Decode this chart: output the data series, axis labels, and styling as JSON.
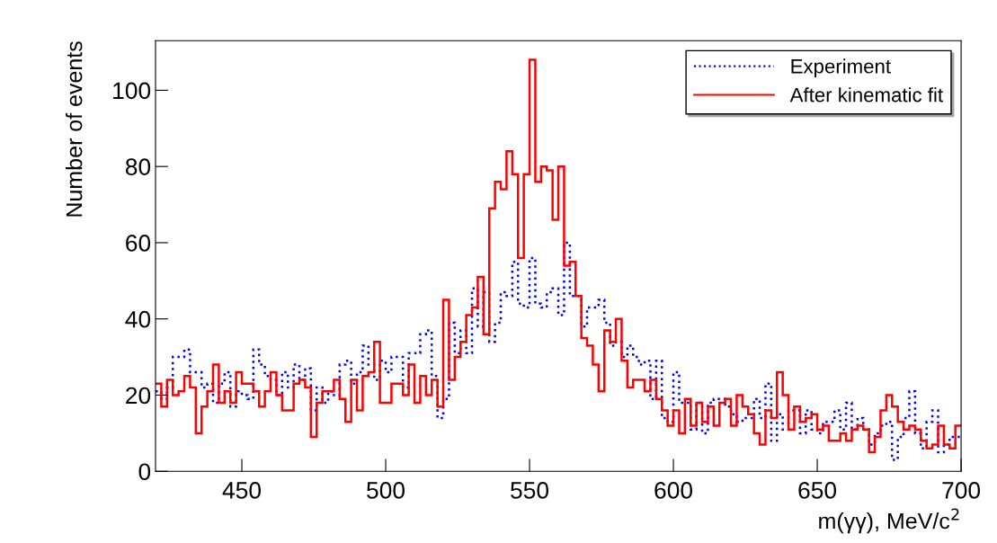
{
  "chart_data": {
    "type": "histogram",
    "xlabel": "m(γγ), MeV/c$^{2}$",
    "ylabel": "Number of events",
    "bins": [
      420,
      422,
      424,
      426,
      428,
      430,
      432,
      434,
      436,
      438,
      440,
      442,
      444,
      446,
      448,
      450,
      452,
      454,
      456,
      458,
      460,
      462,
      464,
      466,
      468,
      470,
      472,
      474,
      476,
      478,
      480,
      482,
      484,
      486,
      488,
      490,
      492,
      494,
      496,
      498,
      500,
      502,
      504,
      506,
      508,
      510,
      512,
      514,
      516,
      518,
      520,
      522,
      524,
      526,
      528,
      530,
      532,
      534,
      536,
      538,
      540,
      542,
      544,
      546,
      548,
      550,
      552,
      554,
      556,
      558,
      560,
      562,
      564,
      566,
      568,
      570,
      572,
      574,
      576,
      578,
      580,
      582,
      584,
      586,
      588,
      590,
      592,
      594,
      596,
      598,
      600,
      602,
      604,
      606,
      608,
      610,
      612,
      614,
      616,
      618,
      620,
      622,
      624,
      626,
      628,
      630,
      632,
      634,
      636,
      638,
      640,
      642,
      644,
      646,
      648,
      650,
      652,
      654,
      656,
      658,
      660,
      662,
      664,
      666,
      668,
      670,
      672,
      674,
      676,
      678,
      680,
      682,
      684,
      686,
      688,
      690,
      692,
      694,
      696,
      698,
      700
    ],
    "series": [
      {
        "name": "Experiment",
        "color": "#0000ff",
        "line_style": "dotted",
        "values": [
          21,
          19,
          22,
          30,
          30,
          32,
          26,
          26,
          22,
          23,
          18,
          23,
          26,
          17,
          21,
          20,
          19,
          32,
          28,
          25,
          24,
          20,
          26,
          22,
          28,
          24,
          27,
          16,
          22,
          18,
          21,
          20,
          28,
          29,
          23,
          26,
          33,
          28,
          24,
          29,
          26,
          30,
          30,
          22,
          31,
          31,
          36,
          37,
          25,
          14,
          19,
          39,
          31,
          37,
          31,
          48,
          38,
          47,
          34,
          39,
          47,
          46,
          55,
          44,
          43,
          56,
          44,
          43,
          47,
          48,
          41,
          60,
          46,
          46,
          38,
          43,
          43,
          45,
          39,
          33,
          34,
          30,
          33,
          30,
          28,
          29,
          19,
          29,
          14,
          13,
          26,
          18,
          18,
          11,
          18,
          10,
          18,
          19,
          19,
          17,
          15,
          13,
          14,
          14,
          19,
          14,
          23,
          8,
          15,
          11,
          16,
          16,
          10,
          16,
          11,
          10,
          13,
          13,
          16,
          11,
          18,
          11,
          14,
          11,
          7,
          10,
          12,
          13,
          3,
          9,
          14,
          21,
          10,
          6,
          13,
          16,
          5,
          7,
          9,
          9
        ]
      },
      {
        "name": "After kinematic fit",
        "color": "#ff0000",
        "line_style": "solid",
        "values": [
          23,
          17,
          24,
          20,
          21,
          25,
          22,
          10,
          17,
          21,
          28,
          18,
          21,
          18,
          26,
          23,
          23,
          21,
          17,
          21,
          26,
          20,
          16,
          16,
          23,
          24,
          22,
          9,
          18,
          21,
          21,
          24,
          19,
          13,
          24,
          16,
          25,
          26,
          34,
          18,
          18,
          23,
          23,
          20,
          28,
          18,
          25,
          20,
          24,
          17,
          45,
          24,
          30,
          34,
          41,
          43,
          51,
          36,
          69,
          76,
          74,
          84,
          78,
          56,
          78,
          108,
          76,
          80,
          79,
          66,
          80,
          54,
          55,
          46,
          35,
          33,
          28,
          21,
          37,
          34,
          40,
          29,
          22,
          24,
          24,
          21,
          24,
          19,
          16,
          12,
          16,
          10,
          19,
          12,
          18,
          13,
          17,
          12,
          18,
          19,
          12,
          20,
          17,
          15,
          10,
          7,
          16,
          14,
          26,
          20,
          11,
          17,
          13,
          14,
          15,
          11,
          12,
          8,
          8,
          10,
          8,
          11,
          12,
          11,
          5,
          9,
          16,
          20,
          17,
          13,
          11,
          12,
          11,
          8,
          6,
          7,
          12,
          7,
          6,
          12
        ]
      }
    ],
    "xlim": [
      420,
      700
    ],
    "ylim": [
      0,
      113
    ],
    "xticks": [
      450,
      500,
      550,
      600,
      650,
      700
    ],
    "yticks": [
      0,
      20,
      40,
      60,
      80,
      100
    ],
    "grid": false,
    "legend": "top right"
  }
}
